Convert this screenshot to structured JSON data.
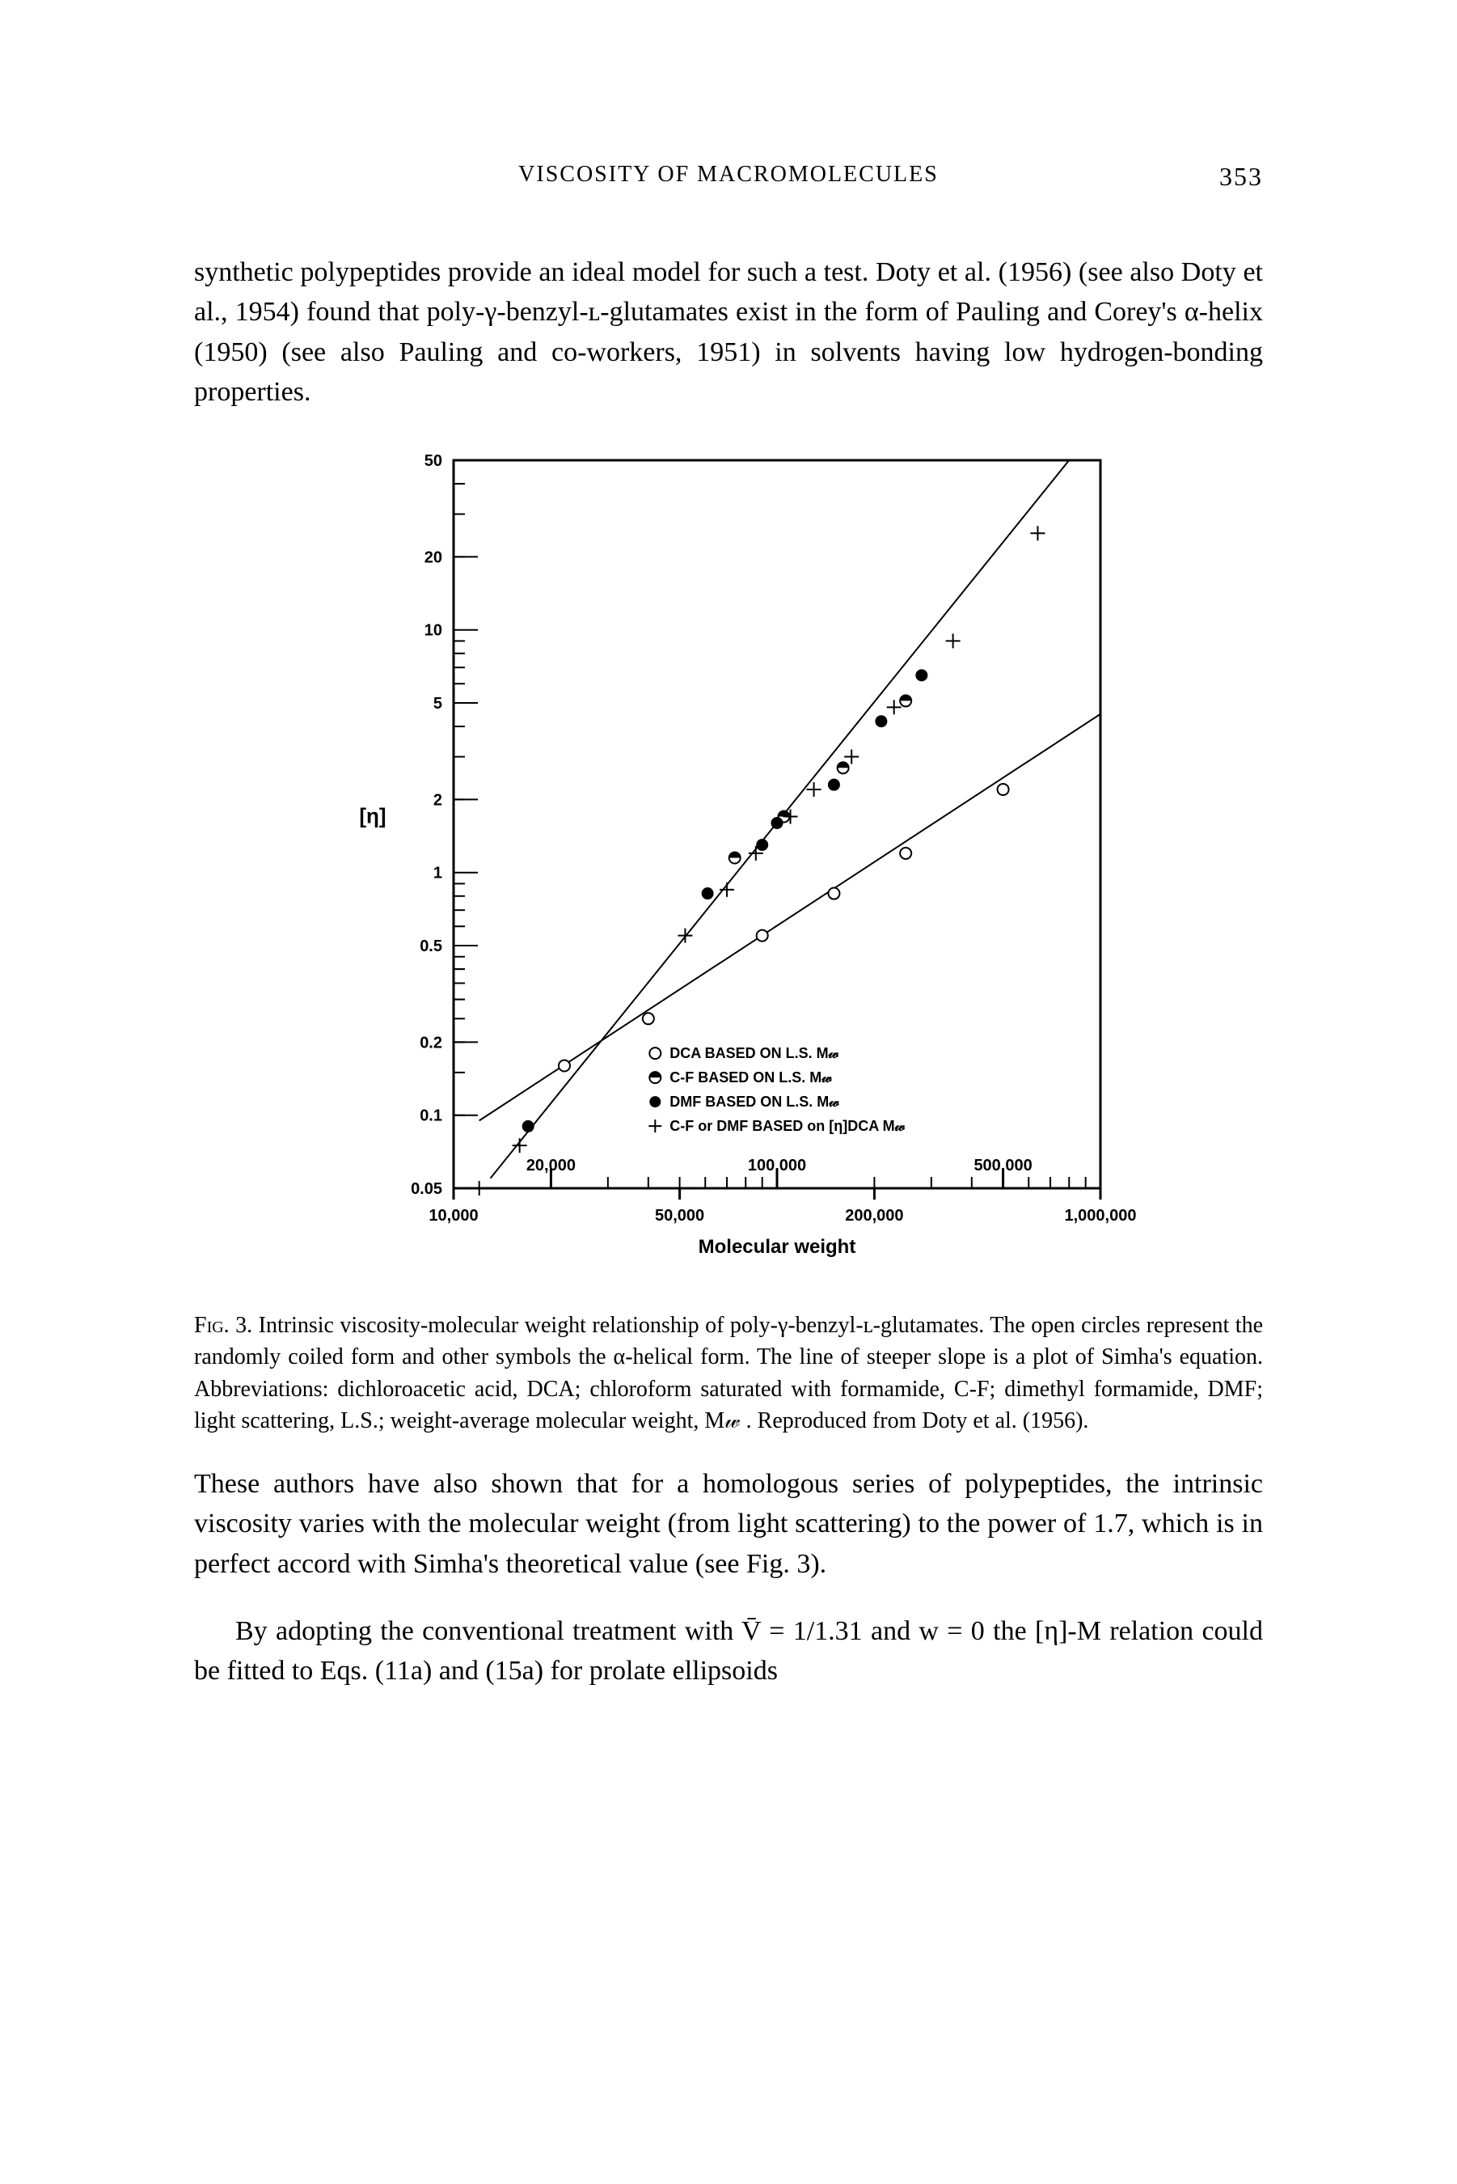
{
  "header": {
    "running_title": "VISCOSITY OF MACROMOLECULES",
    "page_number": "353"
  },
  "paragraphs": {
    "p1": "synthetic polypeptides provide an ideal model for such a test. Doty et al. (1956) (see also Doty et al., 1954) found that poly-γ-benzyl-ʟ-glutamates exist in the form of Pauling and Corey's α-helix (1950) (see also Pauling and co-workers, 1951) in solvents having low hydrogen-bonding properties.",
    "p2": "These authors have also shown that for a homologous series of polypeptides, the intrinsic viscosity varies with the molecular weight (from light scattering) to the power of 1.7, which is in perfect accord with Simha's theoretical value (see Fig. 3).",
    "p3": "By adopting the conventional treatment with V̄ = 1/1.31 and w = 0 the [η]-M relation could be fitted to Eqs. (11a) and (15a) for prolate ellipsoids"
  },
  "figure": {
    "type": "loglog-scatter",
    "number": "3",
    "x_label": "Molecular weight",
    "y_label": "[η]",
    "x_range": [
      10000,
      1000000
    ],
    "y_range": [
      0.05,
      50
    ],
    "x_ticks_major": [
      {
        "value": 10000,
        "label": "10,000"
      },
      {
        "value": 50000,
        "label": "50,000"
      },
      {
        "value": 200000,
        "label": "200,000"
      },
      {
        "value": 1000000,
        "label": "1,000,000"
      }
    ],
    "x_ticks_mid": [
      {
        "value": 20000,
        "label": "20,000"
      },
      {
        "value": 100000,
        "label": "100,000"
      },
      {
        "value": 500000,
        "label": "500,000"
      }
    ],
    "y_ticks": [
      {
        "value": 0.05,
        "label": "0.05"
      },
      {
        "value": 0.1,
        "label": "0.1"
      },
      {
        "value": 0.2,
        "label": "0.2"
      },
      {
        "value": 0.5,
        "label": "0.5"
      },
      {
        "value": 1,
        "label": "1"
      },
      {
        "value": 2,
        "label": "2"
      },
      {
        "value": 5,
        "label": "5"
      },
      {
        "value": 10,
        "label": "10"
      },
      {
        "value": 20,
        "label": "20"
      },
      {
        "value": 50,
        "label": "50"
      }
    ],
    "legend": {
      "items": [
        {
          "marker": "open-circle",
          "label": "DCA  BASED ON  L.S.  M𝓌"
        },
        {
          "marker": "half-circle",
          "label": "C-F   BASED ON  L.S.  M𝓌"
        },
        {
          "marker": "filled-circle",
          "label": "DMF BASED ON  L.S.  M𝓌"
        },
        {
          "marker": "plus",
          "label": "C-F or DMF  BASED on  [η]DCA M𝓌"
        }
      ]
    },
    "lines": [
      {
        "name": "steep-line",
        "x1": 13000,
        "y1": 0.055,
        "x2": 800000,
        "y2": 50,
        "color": "#000000",
        "width": 2
      },
      {
        "name": "shallow-line",
        "x1": 12000,
        "y1": 0.095,
        "x2": 1000000,
        "y2": 4.5,
        "color": "#000000",
        "width": 2
      }
    ],
    "points": {
      "open_circle": [
        {
          "x": 22000,
          "y": 0.16
        },
        {
          "x": 40000,
          "y": 0.25
        },
        {
          "x": 90000,
          "y": 0.55
        },
        {
          "x": 150000,
          "y": 0.82
        },
        {
          "x": 250000,
          "y": 1.2
        },
        {
          "x": 500000,
          "y": 2.2
        }
      ],
      "filled_circle": [
        {
          "x": 17000,
          "y": 0.09
        },
        {
          "x": 61000,
          "y": 0.82
        },
        {
          "x": 90000,
          "y": 1.3
        },
        {
          "x": 100000,
          "y": 1.6
        },
        {
          "x": 150000,
          "y": 2.3
        },
        {
          "x": 210000,
          "y": 4.2
        },
        {
          "x": 280000,
          "y": 6.5
        }
      ],
      "half_circle": [
        {
          "x": 74000,
          "y": 1.15
        },
        {
          "x": 105000,
          "y": 1.7
        },
        {
          "x": 160000,
          "y": 2.7
        },
        {
          "x": 250000,
          "y": 5.1
        }
      ],
      "plus": [
        {
          "x": 12000,
          "y": 0.05
        },
        {
          "x": 16000,
          "y": 0.075
        },
        {
          "x": 52000,
          "y": 0.55
        },
        {
          "x": 70000,
          "y": 0.85
        },
        {
          "x": 86000,
          "y": 1.2
        },
        {
          "x": 110000,
          "y": 1.7
        },
        {
          "x": 130000,
          "y": 2.2
        },
        {
          "x": 170000,
          "y": 3.0
        },
        {
          "x": 230000,
          "y": 4.8
        },
        {
          "x": 350000,
          "y": 9.0
        },
        {
          "x": 640000,
          "y": 25
        }
      ]
    },
    "colors": {
      "axis": "#000000",
      "background": "#ffffff",
      "marker_stroke": "#000000",
      "marker_fill": "#000000",
      "text": "#000000"
    },
    "styling": {
      "axis_width": 3,
      "tick_len_major": 14,
      "tick_len_minor": 8,
      "marker_radius": 7,
      "plus_size": 9,
      "font_axis": 20,
      "font_legend": 18,
      "font_ylabel": 26
    }
  },
  "caption": {
    "lead": "Fig. 3.",
    "text": "Intrinsic viscosity-molecular weight relationship of poly-γ-benzyl-ʟ-glutamates. The open circles represent the randomly coiled form and other symbols the α-helical form. The line of steeper slope is a plot of Simha's equation. Abbreviations: dichloroacetic acid, DCA; chloroform saturated with formamide, C-F; dimethyl formamide, DMF; light scattering, L.S.; weight-average molecular weight, M𝓌 . Reproduced from Doty et al. (1956)."
  }
}
